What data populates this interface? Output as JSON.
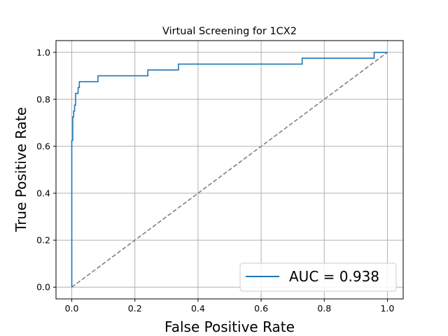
{
  "chart_data": {
    "type": "line",
    "title": "Virtual Screening for 1CX2",
    "xlabel": "False Positive Rate",
    "ylabel": "True Positive Rate",
    "xlim": [
      -0.05,
      1.05
    ],
    "ylim": [
      -0.05,
      1.05
    ],
    "xticks": [
      "0.0",
      "0.2",
      "0.4",
      "0.6",
      "0.8",
      "1.0"
    ],
    "yticks": [
      "0.0",
      "0.2",
      "0.4",
      "0.6",
      "0.8",
      "1.0"
    ],
    "grid": true,
    "legend_position": "lower-right",
    "series": [
      {
        "name": "AUC = 0.938",
        "color": "#1f77b4",
        "style": "step",
        "x": [
          0.0,
          0.0,
          0.003,
          0.003,
          0.006,
          0.006,
          0.009,
          0.009,
          0.012,
          0.012,
          0.02,
          0.02,
          0.024,
          0.024,
          0.083,
          0.083,
          0.241,
          0.241,
          0.338,
          0.338,
          0.73,
          0.73,
          0.958,
          0.958,
          1.0
        ],
        "y": [
          0.0,
          0.625,
          0.625,
          0.725,
          0.725,
          0.75,
          0.75,
          0.775,
          0.775,
          0.825,
          0.825,
          0.85,
          0.85,
          0.875,
          0.875,
          0.9,
          0.9,
          0.925,
          0.925,
          0.95,
          0.95,
          0.975,
          0.975,
          1.0,
          1.0
        ]
      },
      {
        "name": "",
        "color": "#808080",
        "style": "dashed",
        "x": [
          0.0,
          1.0
        ],
        "y": [
          0.0,
          1.0
        ]
      }
    ]
  }
}
